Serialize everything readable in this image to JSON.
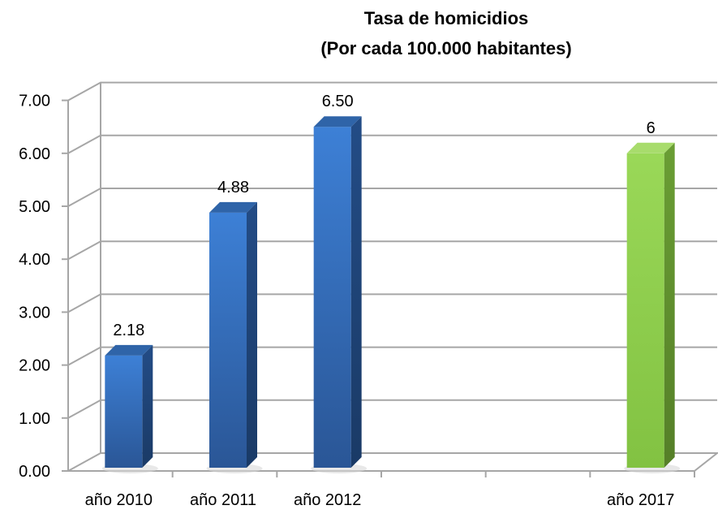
{
  "chart_data": {
    "type": "bar",
    "title": "Tasa de homicidios",
    "subtitle": "(Por cada 100.000 habitantes)",
    "categories": [
      "año 2010",
      "año 2011",
      "año 2012",
      "",
      "",
      "año 2017"
    ],
    "values": [
      2.18,
      4.88,
      6.5,
      null,
      null,
      6
    ],
    "data_labels": [
      "2.18",
      "4.88",
      "6.50",
      "",
      "",
      "6"
    ],
    "ylim": [
      0,
      7
    ],
    "yticks": [
      "0.00",
      "1.00",
      "2.00",
      "3.00",
      "4.00",
      "5.00",
      "6.00",
      "7.00"
    ],
    "xlabel": "",
    "ylabel": "",
    "grid": true,
    "legend": "none",
    "style": "3d-column",
    "colors": {
      "default_bar": "#3a78c8",
      "highlight_bar": "#92d050",
      "gridline": "#a6a6a6"
    },
    "highlight_index": 5
  }
}
